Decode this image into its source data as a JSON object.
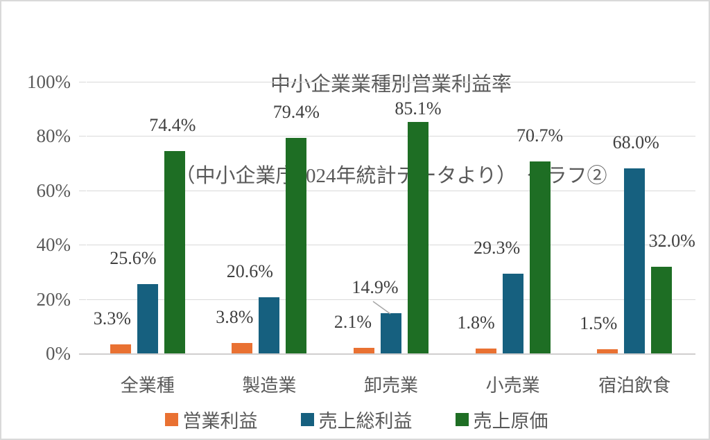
{
  "chart": {
    "title": "中小企業業種別営業利益率",
    "subtitle": "（中小企業庁2024年統計データより）　グラフ②"
  },
  "chart_data": {
    "type": "bar",
    "title": "中小企業業種別営業利益率",
    "subtitle": "（中小企業庁2024年統計データより）　グラフ②",
    "categories": [
      "全業種",
      "製造業",
      "卸売業",
      "小売業",
      "宿泊飲食"
    ],
    "series": [
      {
        "name": "営業利益",
        "color": "#E97132",
        "values": [
          3.3,
          3.8,
          2.1,
          1.8,
          1.5
        ]
      },
      {
        "name": "売上総利益",
        "color": "#16607F",
        "values": [
          25.6,
          20.6,
          14.9,
          29.3,
          68.0
        ]
      },
      {
        "name": "売上原価",
        "color": "#1E6E24",
        "values": [
          74.4,
          79.4,
          85.1,
          70.7,
          32.0
        ]
      }
    ],
    "data_labels": [
      "3.3%",
      "3.8%",
      "2.1%",
      "1.8%",
      "1.5%",
      "25.6%",
      "20.6%",
      "14.9%",
      "29.3%",
      "68.0%",
      "74.4%",
      "79.4%",
      "85.1%",
      "70.7%",
      "32.0%"
    ],
    "label_suffix": "%",
    "ylim": [
      0,
      100
    ],
    "y_ticks": [
      "0%",
      "20%",
      "40%",
      "60%",
      "80%",
      "100%"
    ],
    "grid": true,
    "legend_position": "bottom",
    "colors": {
      "grid": "#d9d9d9",
      "axis": "#d0cece",
      "text": "#595959",
      "data_label_text": "#3f3f3f",
      "leader_line": "#a6a6a6"
    }
  }
}
